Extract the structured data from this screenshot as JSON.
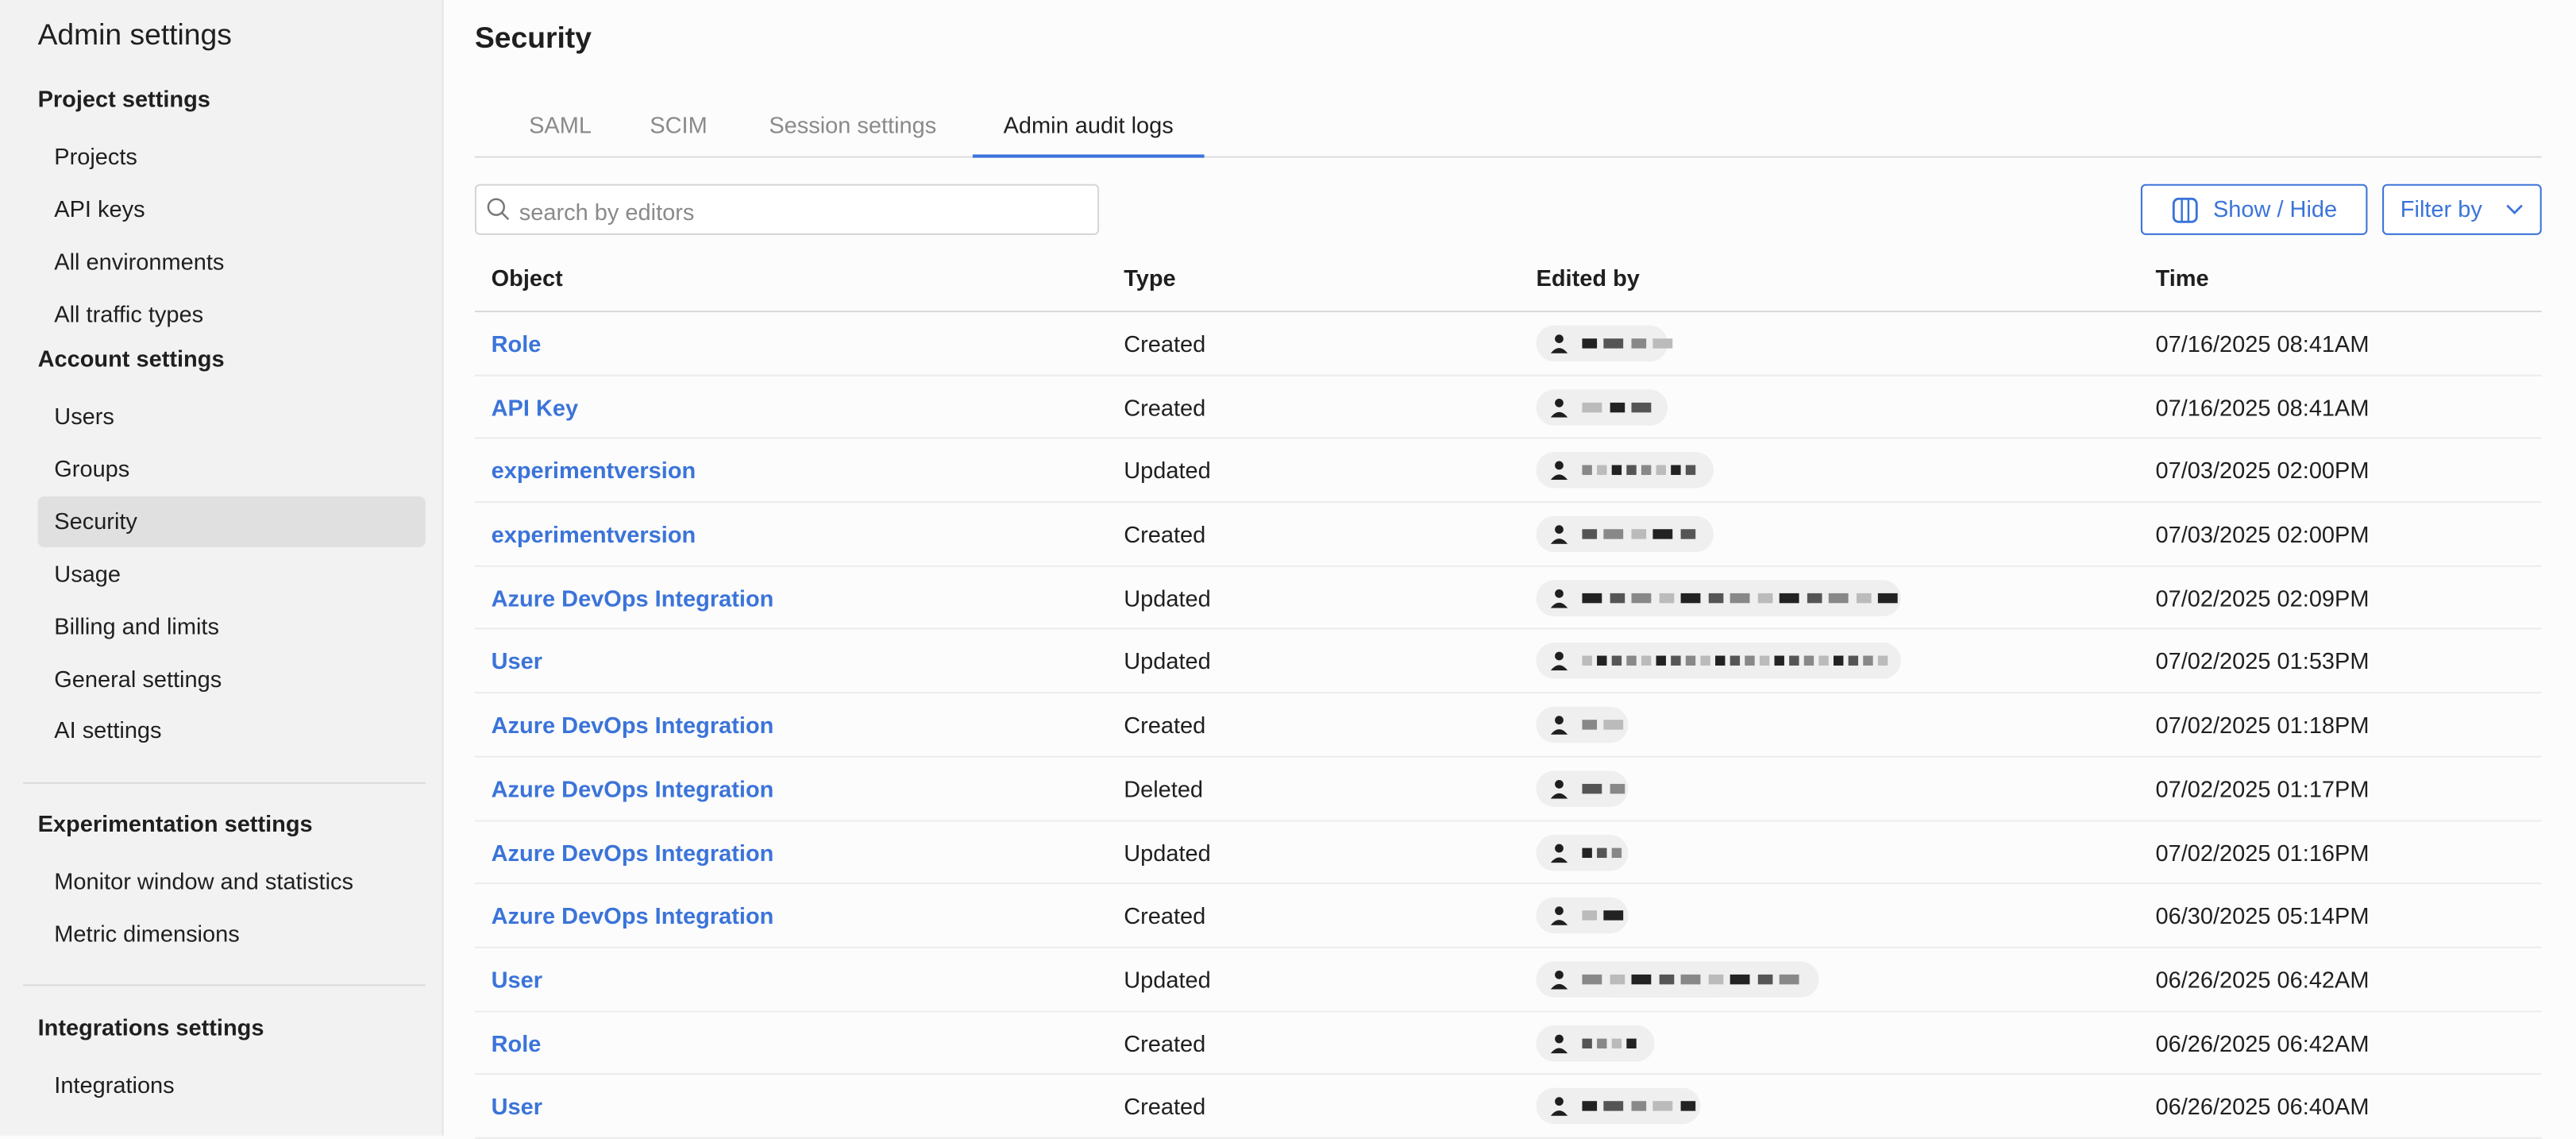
{
  "sidebar": {
    "title": "Admin settings",
    "sections": [
      {
        "label": "Project settings",
        "items": [
          "Projects",
          "API keys",
          "All environments",
          "All traffic types"
        ]
      },
      {
        "label": "Account settings",
        "items": [
          "Users",
          "Groups",
          "Security",
          "Usage",
          "Billing and limits",
          "General settings",
          "AI settings"
        ]
      },
      {
        "label": "Experimentation settings",
        "items": [
          "Monitor window and statistics",
          "Metric dimensions"
        ]
      },
      {
        "label": "Integrations settings",
        "items": [
          "Integrations"
        ]
      }
    ],
    "active_item": "Security"
  },
  "main": {
    "title": "Security",
    "tabs": [
      "SAML",
      "SCIM",
      "Session settings",
      "Admin audit logs"
    ],
    "active_tab": "Admin audit logs",
    "search": {
      "placeholder": "search by editors",
      "value": ""
    },
    "show_hide_label": "Show / Hide",
    "filter_label": "Filter by",
    "accent_color": "#3b74d9",
    "table": {
      "columns": [
        "Object",
        "Type",
        "Edited by",
        "Time"
      ],
      "rows": [
        {
          "object": "Role",
          "type": "Created",
          "time": "07/16/2025 08:41AM"
        },
        {
          "object": "API Key",
          "type": "Created",
          "time": "07/16/2025 08:41AM"
        },
        {
          "object": "experimentversion",
          "type": "Updated",
          "time": "07/03/2025 02:00PM"
        },
        {
          "object": "experimentversion",
          "type": "Created",
          "time": "07/03/2025 02:00PM"
        },
        {
          "object": "Azure DevOps Integration",
          "type": "Updated",
          "time": "07/02/2025 02:09PM"
        },
        {
          "object": "User",
          "type": "Updated",
          "time": "07/02/2025 01:53PM"
        },
        {
          "object": "Azure DevOps Integration",
          "type": "Created",
          "time": "07/02/2025 01:18PM"
        },
        {
          "object": "Azure DevOps Integration",
          "type": "Deleted",
          "time": "07/02/2025 01:17PM"
        },
        {
          "object": "Azure DevOps Integration",
          "type": "Updated",
          "time": "07/02/2025 01:16PM"
        },
        {
          "object": "Azure DevOps Integration",
          "type": "Created",
          "time": "06/30/2025 05:14PM"
        },
        {
          "object": "User",
          "type": "Updated",
          "time": "06/26/2025 06:42AM"
        },
        {
          "object": "Role",
          "type": "Created",
          "time": "06/26/2025 06:42AM"
        },
        {
          "object": "User",
          "type": "Created",
          "time": "06/26/2025 06:40AM"
        }
      ]
    }
  }
}
